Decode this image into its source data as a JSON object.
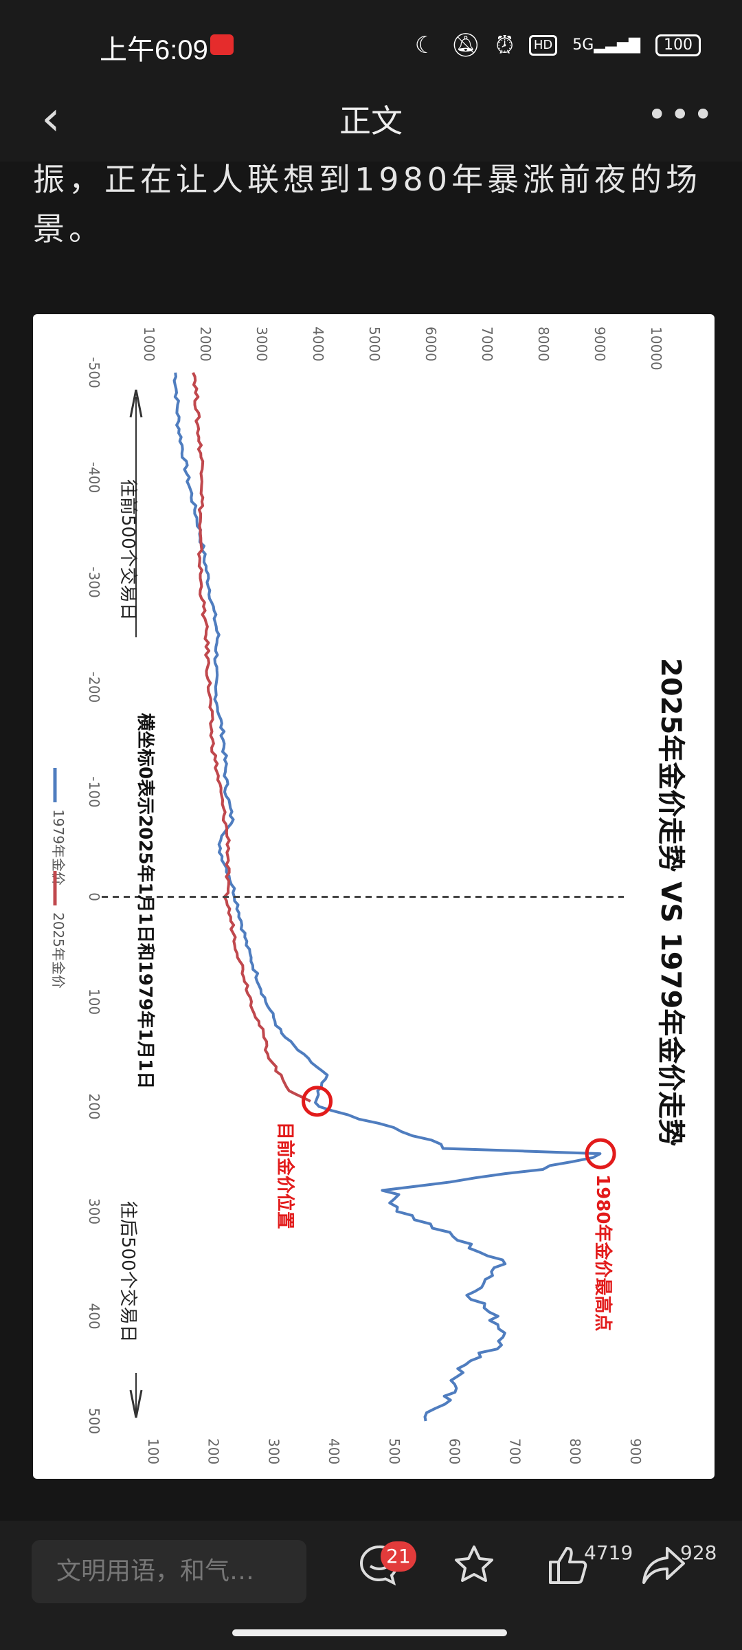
{
  "status": {
    "time": "上午6:09",
    "network": "5G",
    "hd": "HD",
    "battery": "100"
  },
  "nav": {
    "title": "正文",
    "more": "•••"
  },
  "article": {
    "text": "振，正在让人联想到1980年暴涨前夜的场景。"
  },
  "figure": {
    "title": "2025年金价走势 VS 1979年金价走势",
    "legend": [
      "1979年金价",
      "2025年金价"
    ],
    "annotations": {
      "back": "往前500个交易日",
      "forward": "往后500个交易日",
      "zero_note": "横坐标0表示2025年1月1日和1979年1月1日",
      "current": "目前金价位置",
      "peak": "1980年金价最高点"
    },
    "colors": {
      "series_1979": "#4f7dbf",
      "series_2025": "#c0484d",
      "marker": "#e21b1b"
    }
  },
  "chart_data": {
    "type": "line",
    "title": "2025年金价走势 VS 1979年金价走势",
    "x_ticks": [
      "-500",
      "-400",
      "-300",
      "-200",
      "-100",
      "0",
      "100",
      "200",
      "300",
      "400",
      "500"
    ],
    "left_axis_ticks": [
      "1000",
      "2000",
      "3000",
      "4000",
      "5000",
      "6000",
      "7000",
      "8000",
      "9000",
      "10000"
    ],
    "right_axis_ticks": [
      "100",
      "200",
      "300",
      "400",
      "500",
      "600",
      "700",
      "800",
      "900"
    ],
    "xlim": [
      -500,
      500
    ],
    "ylim_left": [
      0,
      10000
    ],
    "ylim_right": [
      0,
      900
    ],
    "series": [
      {
        "name": "1979年金价",
        "axis": "right",
        "x": [
          -500,
          -450,
          -400,
          -350,
          -300,
          -250,
          -200,
          -150,
          -100,
          -70,
          -50,
          -20,
          0,
          50,
          100,
          130,
          150,
          170,
          185,
          200,
          220,
          240,
          245,
          260,
          280,
          300,
          320,
          350,
          380,
          400,
          420,
          450,
          480,
          500
        ],
        "values": [
          145,
          150,
          165,
          185,
          200,
          215,
          210,
          225,
          230,
          240,
          215,
          235,
          245,
          265,
          295,
          320,
          355,
          395,
          380,
          380,
          500,
          600,
          850,
          750,
          500,
          520,
          590,
          690,
          640,
          670,
          700,
          620,
          590,
          560
        ]
      },
      {
        "name": "2025年金价",
        "axis": "left",
        "x": [
          -500,
          -450,
          -400,
          -350,
          -300,
          -250,
          -200,
          -150,
          -100,
          -50,
          0,
          50,
          100,
          130,
          150,
          170,
          185,
          195
        ],
        "values": [
          1900,
          1950,
          2050,
          1980,
          2000,
          2100,
          2150,
          2200,
          2350,
          2500,
          2450,
          2650,
          2900,
          3100,
          3200,
          3400,
          3600,
          3950
        ]
      }
    ],
    "markers": [
      {
        "label": "目前金价位置",
        "x": 195,
        "value": 380,
        "axis": "right"
      },
      {
        "label": "1980年金价最高点",
        "x": 245,
        "value": 850,
        "axis": "right"
      }
    ]
  },
  "bottom": {
    "comment_placeholder": "文明用语，和气…",
    "comments": "21",
    "likes": "4719",
    "shares": "928"
  }
}
